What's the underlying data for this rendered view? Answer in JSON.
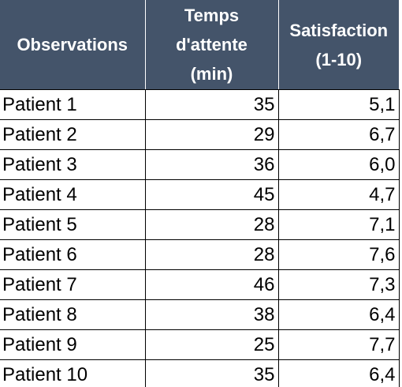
{
  "table": {
    "headers": [
      {
        "lines": [
          "Temps",
          "d'attente",
          "(min)"
        ]
      }
    ],
    "header_observations": "Observations",
    "header_wait": [
      "Temps",
      "d'attente",
      "(min)"
    ],
    "header_satisfaction": [
      "Satisfaction",
      "(1-10)"
    ],
    "rows": [
      {
        "patient": "Patient 1",
        "wait": "35",
        "satisfaction": "5,1"
      },
      {
        "patient": "Patient 2",
        "wait": "29",
        "satisfaction": "6,7"
      },
      {
        "patient": "Patient 3",
        "wait": "36",
        "satisfaction": "6,0"
      },
      {
        "patient": "Patient 4",
        "wait": "45",
        "satisfaction": "4,7"
      },
      {
        "patient": "Patient 5",
        "wait": "28",
        "satisfaction": "7,1"
      },
      {
        "patient": "Patient 6",
        "wait": "28",
        "satisfaction": "7,6"
      },
      {
        "patient": "Patient 7",
        "wait": "46",
        "satisfaction": "7,3"
      },
      {
        "patient": "Patient 8",
        "wait": "38",
        "satisfaction": "6,4"
      },
      {
        "patient": "Patient 9",
        "wait": "25",
        "satisfaction": "7,7"
      },
      {
        "patient": "Patient 10",
        "wait": "35",
        "satisfaction": "6,4"
      }
    ]
  },
  "colors": {
    "header_background": "#44546a",
    "header_text": "#ffffff",
    "grid_lines": "#000000"
  }
}
